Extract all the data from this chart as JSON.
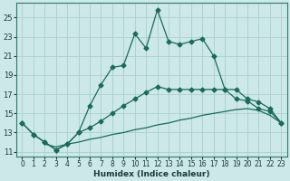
{
  "xlabel": "Humidex (Indice chaleur)",
  "xlim": [
    -0.5,
    23.5
  ],
  "ylim": [
    10.5,
    26.5
  ],
  "xticks": [
    0,
    1,
    2,
    3,
    4,
    5,
    6,
    7,
    8,
    9,
    10,
    11,
    12,
    13,
    14,
    15,
    16,
    17,
    18,
    19,
    20,
    21,
    22,
    23
  ],
  "yticks": [
    11,
    13,
    15,
    17,
    19,
    21,
    23,
    25
  ],
  "line_color": "#1a6b5a",
  "bg_color": "#cce8e8",
  "grid_color": "#aacece",
  "line1_x": [
    0,
    1,
    2,
    3,
    4,
    5,
    6,
    7,
    8,
    9,
    10,
    11,
    12,
    13,
    14,
    15,
    16,
    17,
    18,
    19,
    20,
    21,
    22,
    23
  ],
  "line1_y": [
    14.0,
    12.8,
    12.0,
    11.2,
    11.8,
    13.0,
    15.8,
    18.0,
    19.8,
    20.0,
    23.3,
    21.8,
    25.8,
    22.5,
    22.2,
    22.5,
    22.8,
    21.0,
    17.5,
    16.5,
    16.3,
    15.5,
    15.2,
    14.0
  ],
  "line2_x": [
    0,
    1,
    2,
    3,
    4,
    5,
    6,
    7,
    8,
    9,
    10,
    11,
    12,
    13,
    14,
    15,
    16,
    17,
    18,
    19,
    20,
    21,
    22,
    23
  ],
  "line2_y": [
    14.0,
    12.8,
    12.0,
    11.2,
    11.8,
    13.0,
    13.5,
    14.2,
    15.0,
    15.8,
    16.5,
    17.2,
    17.8,
    17.5,
    17.5,
    17.5,
    17.5,
    17.5,
    17.5,
    17.5,
    16.5,
    16.2,
    15.5,
    14.0
  ],
  "line3_x": [
    2,
    3,
    4,
    5,
    6,
    7,
    8,
    9,
    10,
    11,
    12,
    13,
    14,
    15,
    16,
    17,
    18,
    19,
    20,
    21,
    22,
    23
  ],
  "line3_y": [
    11.8,
    11.5,
    11.8,
    12.0,
    12.3,
    12.5,
    12.8,
    13.0,
    13.3,
    13.5,
    13.8,
    14.0,
    14.3,
    14.5,
    14.8,
    15.0,
    15.2,
    15.4,
    15.5,
    15.3,
    14.8,
    14.0
  ]
}
